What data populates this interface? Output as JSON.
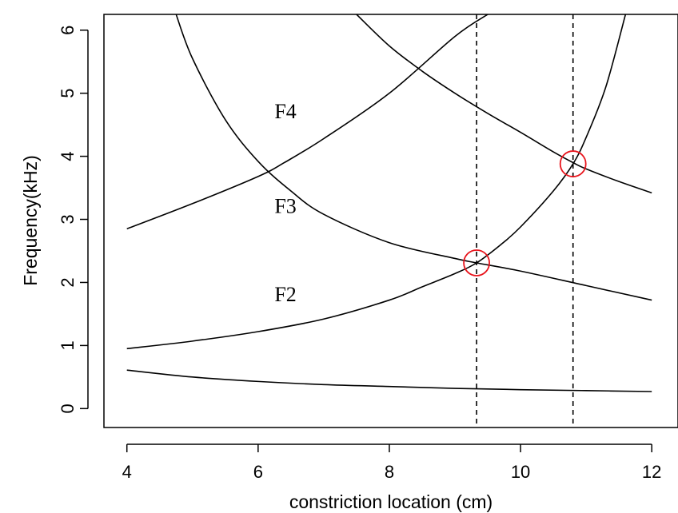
{
  "chart_data": {
    "type": "line",
    "title": "",
    "xlabel": "constriction location (cm)",
    "ylabel": "Frequency(kHz)",
    "xlim": [
      3.65,
      12.4
    ],
    "ylim": [
      -0.3,
      6.25
    ],
    "x_ticks": [
      4,
      6,
      8,
      10,
      12
    ],
    "y_ticks": [
      0,
      1,
      2,
      3,
      4,
      5,
      6
    ],
    "grid": false,
    "series": [
      {
        "x": [
          4,
          5,
          6,
          7,
          8,
          9,
          10,
          11,
          12
        ],
        "y": [
          0.61,
          0.5,
          0.43,
          0.38,
          0.35,
          0.32,
          0.3,
          0.285,
          0.27
        ]
      },
      {
        "label": "F2",
        "x": [
          4,
          5,
          6,
          7,
          8,
          8.5,
          9,
          9.33,
          9.7,
          10,
          10.5,
          10.8,
          11,
          11.3,
          11.6
        ],
        "y": [
          0.95,
          1.07,
          1.22,
          1.42,
          1.72,
          1.93,
          2.14,
          2.31,
          2.6,
          2.88,
          3.45,
          3.88,
          4.3,
          5.1,
          6.25
        ]
      },
      {
        "label": "F3",
        "x": [
          4.75,
          5,
          5.5,
          6,
          6.5,
          7,
          8,
          9,
          9.33,
          10,
          11,
          12
        ],
        "y": [
          6.25,
          5.55,
          4.58,
          3.92,
          3.45,
          3.08,
          2.63,
          2.38,
          2.31,
          2.18,
          1.95,
          1.72
        ]
      },
      {
        "label": "F4",
        "x": [
          4,
          5,
          6,
          6.4,
          7,
          8,
          9,
          9.5
        ],
        "y": [
          2.85,
          3.25,
          3.68,
          3.9,
          4.28,
          5.0,
          5.9,
          6.25
        ]
      },
      {
        "x": [
          7.5,
          8,
          8.5,
          9,
          9.5,
          10,
          10.5,
          10.8,
          11,
          11.5,
          12
        ],
        "y": [
          6.25,
          5.75,
          5.35,
          5.0,
          4.68,
          4.38,
          4.07,
          3.9,
          3.8,
          3.6,
          3.42
        ]
      }
    ],
    "curve_labels": [
      {
        "text": "F4",
        "x": 6.25,
        "y": 4.6
      },
      {
        "text": "F3",
        "x": 6.25,
        "y": 3.1
      },
      {
        "text": "F2",
        "x": 6.25,
        "y": 1.7
      }
    ],
    "vertical_lines": [
      9.33,
      10.8
    ],
    "markers": [
      {
        "x": 9.33,
        "y": 2.31,
        "color": "#e8141c"
      },
      {
        "x": 10.8,
        "y": 3.88,
        "color": "#e8141c"
      }
    ]
  }
}
